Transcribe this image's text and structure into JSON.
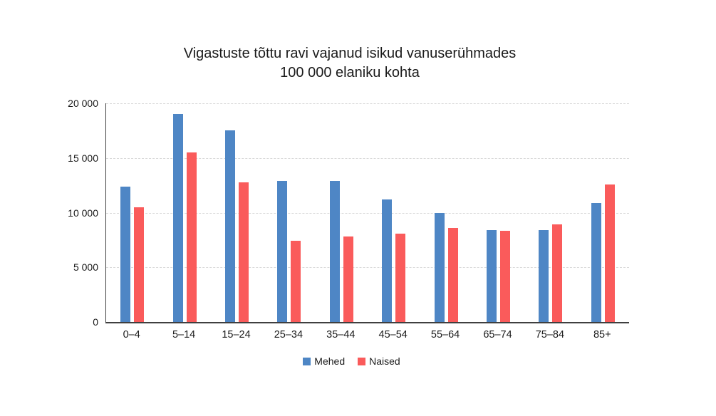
{
  "chart_data": {
    "type": "bar",
    "title": "Vigastuste tõttu ravi vajanud isikud vanuserühmades",
    "subtitle": "100 000 elaniku kohta",
    "categories": [
      "0–4",
      "5–14",
      "15–24",
      "25–34",
      "35–44",
      "45–54",
      "55–64",
      "65–74",
      "75–84",
      "85+"
    ],
    "series": [
      {
        "name": "Mehed",
        "color": "#4E86C5",
        "values": [
          12400,
          19000,
          17500,
          12900,
          12900,
          11200,
          10000,
          8400,
          8400,
          10900
        ]
      },
      {
        "name": "Naised",
        "color": "#FA5B5B",
        "values": [
          10500,
          15500,
          12800,
          7400,
          7800,
          8100,
          8600,
          8350,
          8900,
          12600
        ]
      }
    ],
    "ylim": [
      0,
      20000
    ],
    "yticks": [
      {
        "value": 0,
        "label": "0"
      },
      {
        "value": 5000,
        "label": "5 000"
      },
      {
        "value": 10000,
        "label": "10 000"
      },
      {
        "value": 15000,
        "label": "15 000"
      },
      {
        "value": 20000,
        "label": "20 000"
      }
    ],
    "grid": "horizontal-dashed",
    "legend_position": "bottom",
    "axis_color": "#3F3F3F",
    "grid_color": "#D9D9D9",
    "text_color": "#1A1A1A"
  }
}
